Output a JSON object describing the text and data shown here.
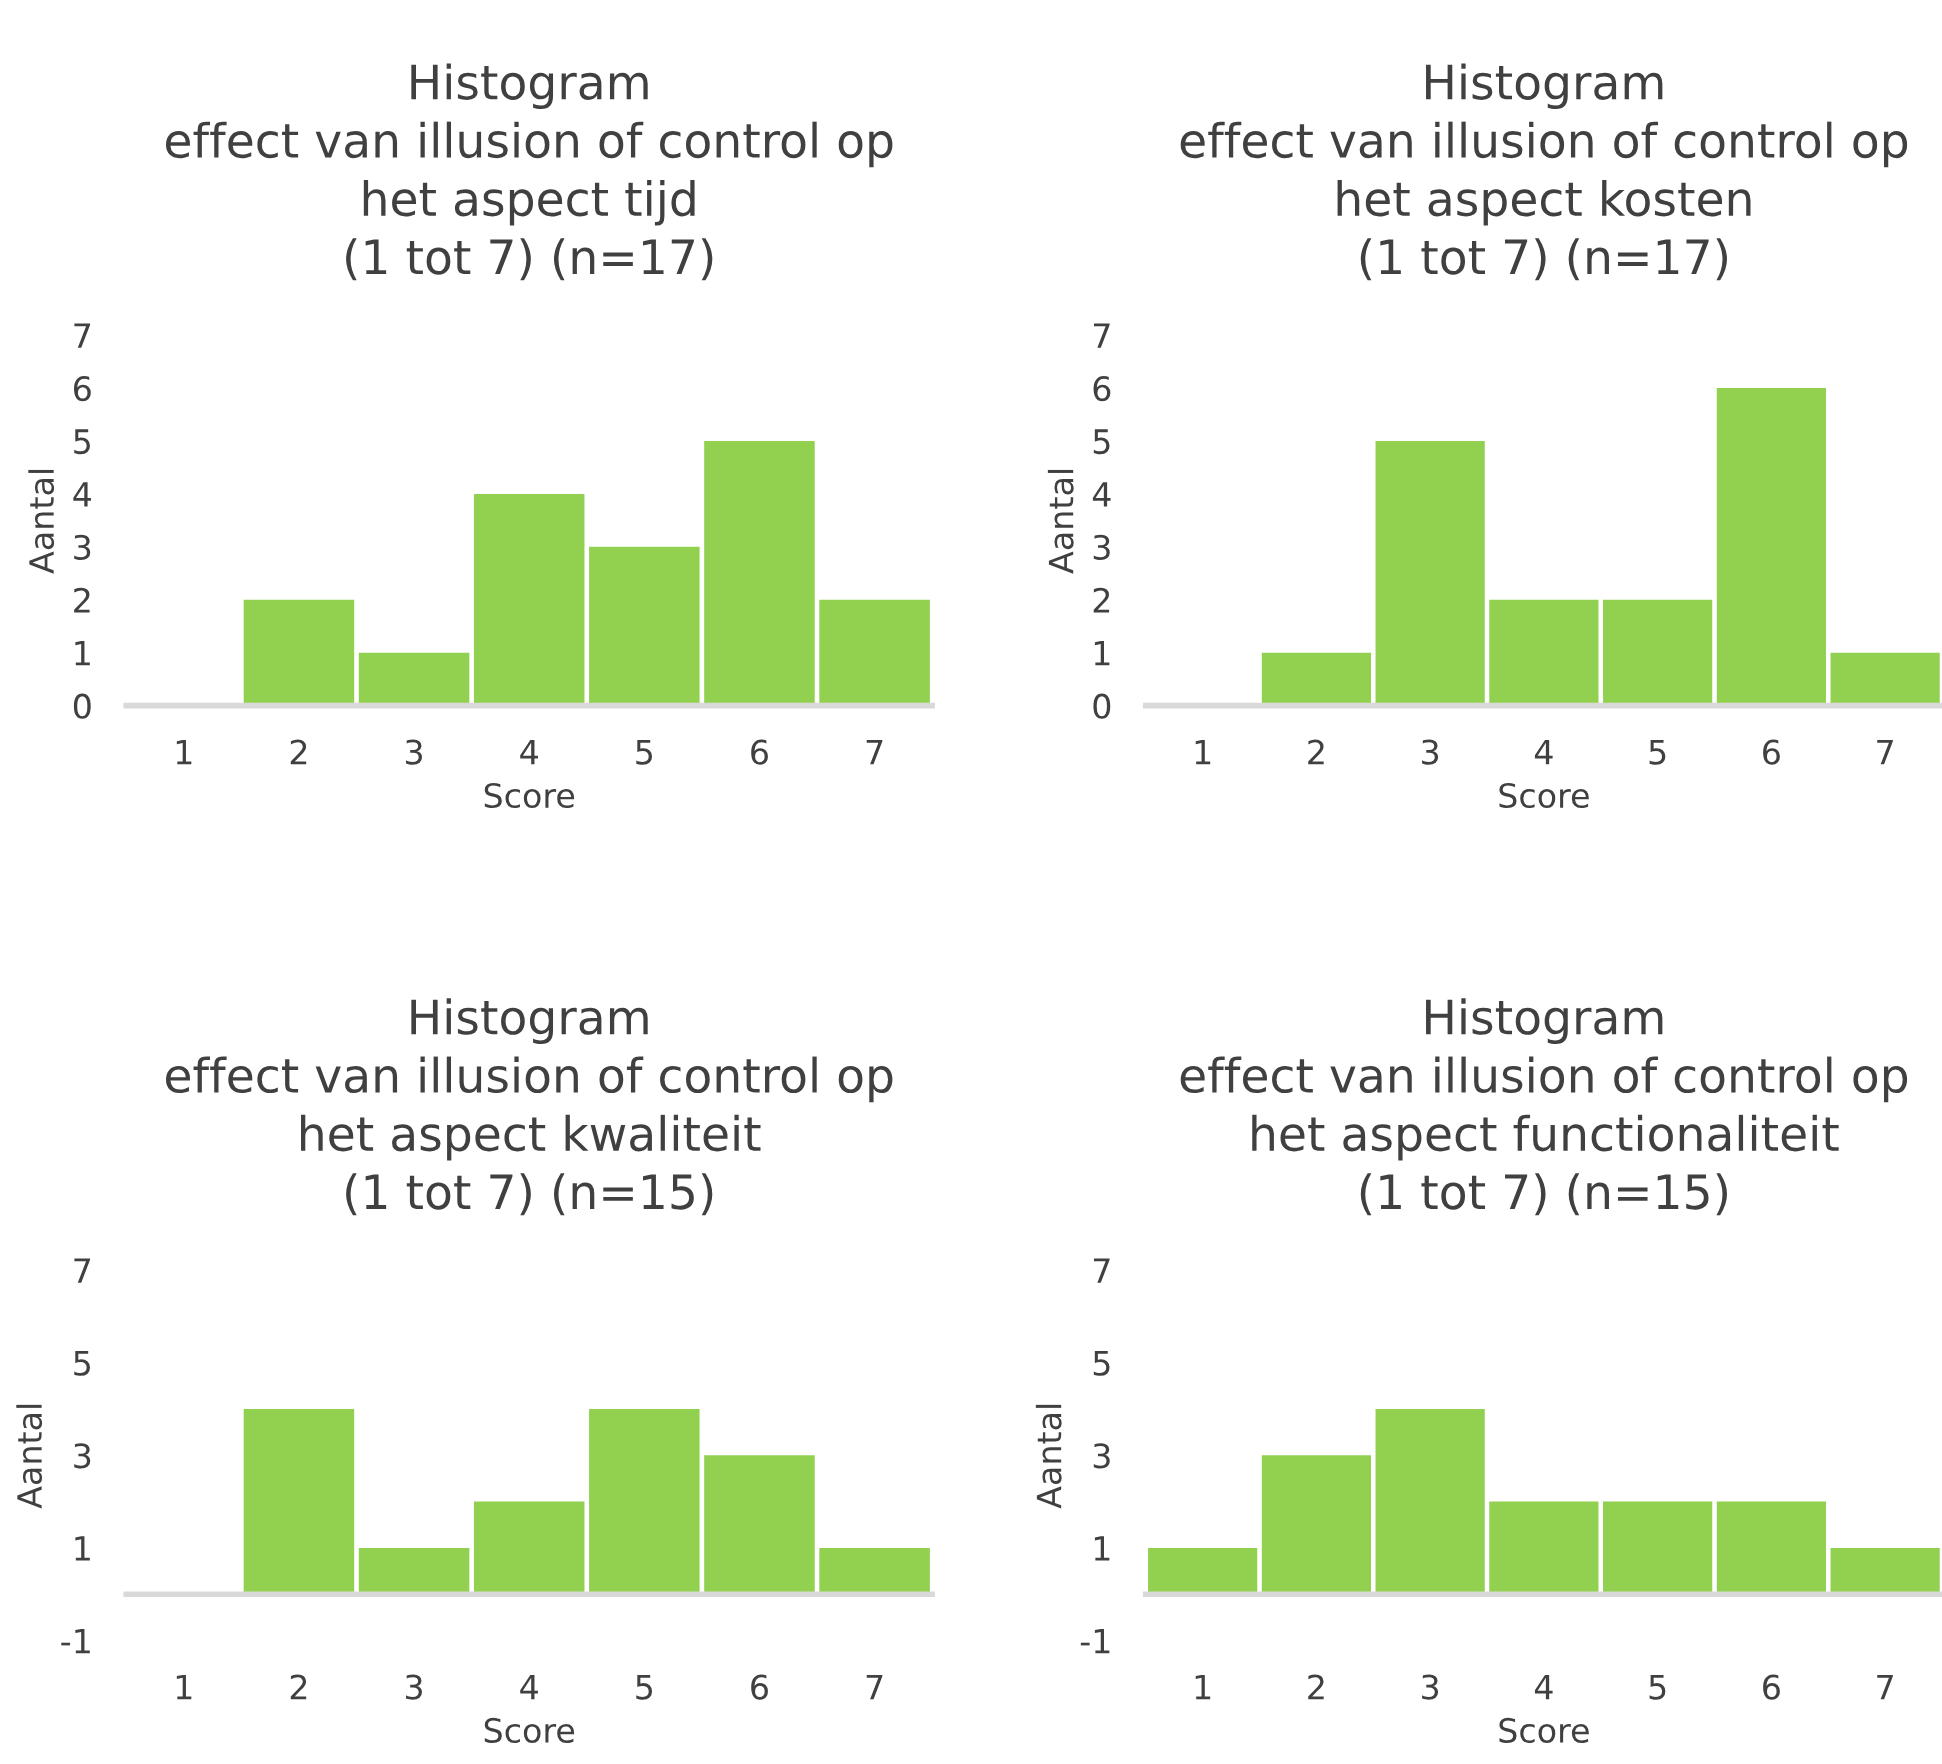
{
  "chart_data": [
    {
      "type": "bar",
      "title": "Histogram\neffect van illusion of control op\nhet aspect tijd\n(1 tot 7) (n=17)",
      "xlabel": "Score",
      "ylabel": "Aantal",
      "categories": [
        "1",
        "2",
        "3",
        "4",
        "5",
        "6",
        "7"
      ],
      "values": [
        0,
        2,
        1,
        4,
        3,
        5,
        2
      ],
      "color": "#92d050",
      "ylim": [
        0,
        7
      ],
      "yticks": [
        0,
        1,
        2,
        3,
        4,
        5,
        6,
        7
      ],
      "grid": false
    },
    {
      "type": "bar",
      "title": "Histogram\neffect van illusion of control op\nhet aspect kosten\n(1 tot 7) (n=17)",
      "xlabel": "Score",
      "ylabel": "Aantal",
      "categories": [
        "1",
        "2",
        "3",
        "4",
        "5",
        "6",
        "7"
      ],
      "values": [
        0,
        1,
        5,
        2,
        2,
        6,
        1
      ],
      "color": "#92d050",
      "ylim": [
        0,
        7
      ],
      "yticks": [
        0,
        1,
        2,
        3,
        4,
        5,
        6,
        7
      ],
      "grid": false
    },
    {
      "type": "bar",
      "title": "Histogram\neffect van illusion of control op\nhet aspect kwaliteit\n(1 tot 7) (n=15)",
      "xlabel": "Score",
      "ylabel": "Aantal",
      "categories": [
        "1",
        "2",
        "3",
        "4",
        "5",
        "6",
        "7"
      ],
      "values": [
        0,
        4,
        1,
        2,
        4,
        3,
        1
      ],
      "color": "#92d050",
      "ylim": [
        -1,
        7
      ],
      "yticks": [
        -1,
        1,
        3,
        5,
        7
      ],
      "grid": false
    },
    {
      "type": "bar",
      "title": "Histogram\neffect van illusion of control op\nhet aspect functionaliteit\n(1 tot 7) (n=15)",
      "xlabel": "Score",
      "ylabel": "Aantal",
      "categories": [
        "1",
        "2",
        "3",
        "4",
        "5",
        "6",
        "7"
      ],
      "values": [
        1,
        3,
        4,
        2,
        2,
        2,
        1
      ],
      "color": "#92d050",
      "ylim": [
        -1,
        7
      ],
      "yticks": [
        -1,
        1,
        3,
        5,
        7
      ],
      "grid": false
    }
  ]
}
